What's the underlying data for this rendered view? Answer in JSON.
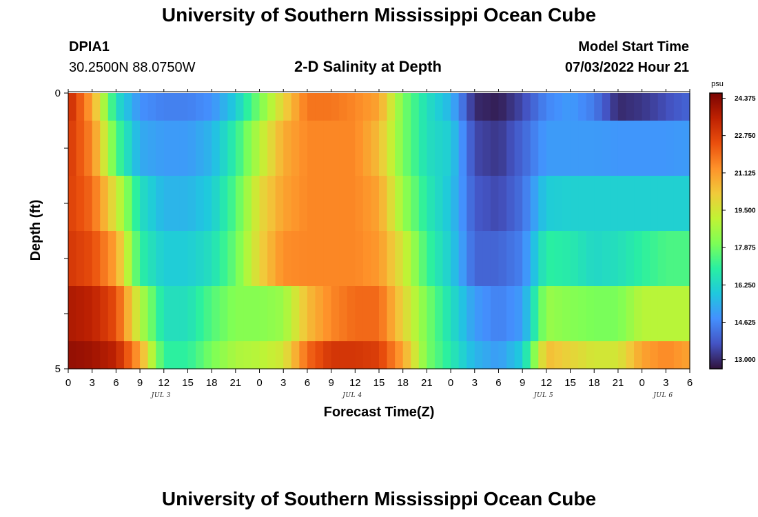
{
  "header": {
    "title": "University of Southern Mississippi Ocean Cube",
    "station_id": "DPIA1",
    "station_coords": "30.2500N  88.0750W",
    "chart_title": "2-D Salinity at Depth",
    "model_start_label": "Model Start Time",
    "model_start_value": "07/03/2022 Hour 21"
  },
  "footer": {
    "title": "University of Southern Mississippi Ocean Cube"
  },
  "chart_data": {
    "type": "heatmap",
    "title": "2-D Salinity at Depth",
    "xlabel": "Forecast Time(Z)",
    "ylabel": "Depth (ft)",
    "x_range_hours": [
      0,
      78
    ],
    "x_tick_hours": [
      0,
      3,
      6,
      9,
      12,
      15,
      18,
      21,
      24,
      27,
      30,
      33,
      36,
      39,
      42,
      45,
      48,
      51,
      54,
      57,
      60,
      63,
      66,
      69,
      72,
      75,
      78
    ],
    "x_tick_labels": [
      "0",
      "3",
      "6",
      "9",
      "12",
      "15",
      "18",
      "21",
      "0",
      "3",
      "6",
      "9",
      "12",
      "15",
      "18",
      "21",
      "0",
      "3",
      "6",
      "9",
      "12",
      "15",
      "18",
      "21",
      "0",
      "3",
      "6"
    ],
    "day_labels": [
      {
        "label": "JUL 3",
        "hour": 12
      },
      {
        "label": "JUL 4",
        "hour": 36
      },
      {
        "label": "JUL 5",
        "hour": 60
      },
      {
        "label": "JUL 6",
        "hour": 75
      }
    ],
    "y_range_ft": [
      0,
      5
    ],
    "y_tick_values": [
      0,
      1,
      2,
      3,
      4,
      5
    ],
    "y_tick_labels": [
      "0",
      "",
      "",
      "",
      "",
      "5"
    ],
    "depth_layers_ft": [
      0.25,
      1.0,
      2.0,
      3.0,
      4.0,
      4.75
    ],
    "colorbar": {
      "unit": "psu",
      "min": 12.6,
      "max": 24.6,
      "tick_values": [
        24.375,
        22.75,
        21.125,
        19.5,
        17.875,
        16.25,
        14.625,
        13.0
      ],
      "tick_labels": [
        "24.375",
        "22.750",
        "21.125",
        "19.500",
        "17.875",
        "16.250",
        "14.625",
        "13.000"
      ],
      "colors": [
        "#30123b",
        "#4454c4",
        "#4490fe",
        "#1fc8de",
        "#29efa2",
        "#7dff56",
        "#c1f334",
        "#f1ca3a",
        "#fe922a",
        "#ea4f0d",
        "#be2102",
        "#7a0403"
      ]
    },
    "salinity_keyframes": {
      "hours": [
        0,
        3,
        6,
        9,
        12,
        15,
        18,
        21,
        24,
        27,
        30,
        33,
        36,
        39,
        42,
        45,
        48,
        51,
        54,
        57,
        60,
        63,
        66,
        69,
        72,
        75,
        78
      ],
      "layers": [
        [
          23.4,
          21.0,
          16.5,
          14.8,
          14.5,
          14.5,
          14.8,
          16.0,
          18.0,
          20.0,
          21.8,
          21.8,
          21.5,
          21.0,
          18.0,
          16.5,
          15.5,
          13.0,
          12.8,
          13.5,
          14.6,
          15.0,
          14.4,
          13.0,
          13.2,
          13.6,
          14.0
        ],
        [
          23.0,
          21.5,
          17.5,
          15.3,
          15.0,
          15.0,
          15.5,
          17.0,
          19.0,
          20.8,
          21.5,
          21.5,
          21.5,
          20.5,
          18.0,
          16.5,
          16.0,
          13.5,
          13.2,
          14.0,
          15.0,
          15.0,
          15.0,
          14.9,
          14.9,
          14.9,
          15.0
        ],
        [
          22.8,
          22.0,
          19.5,
          16.5,
          15.5,
          15.5,
          16.0,
          17.5,
          19.8,
          21.0,
          21.5,
          21.5,
          21.5,
          21.0,
          18.5,
          16.8,
          15.8,
          13.8,
          13.5,
          14.2,
          16.0,
          16.1,
          16.1,
          16.1,
          16.1,
          16.1,
          16.1
        ],
        [
          23.0,
          22.5,
          21.0,
          17.0,
          16.0,
          16.0,
          16.5,
          17.8,
          20.0,
          21.4,
          21.5,
          21.5,
          21.5,
          21.2,
          19.5,
          17.2,
          16.0,
          14.0,
          14.0,
          14.5,
          17.0,
          16.8,
          16.3,
          16.5,
          17.0,
          17.4,
          17.4
        ],
        [
          23.8,
          23.5,
          22.5,
          19.0,
          16.5,
          16.5,
          17.5,
          18.2,
          18.2,
          18.5,
          20.5,
          21.5,
          22.0,
          22.0,
          20.0,
          18.0,
          16.5,
          15.0,
          14.5,
          15.0,
          18.5,
          18.2,
          18.0,
          18.0,
          19.0,
          19.0,
          19.0
        ],
        [
          24.2,
          24.0,
          23.5,
          21.0,
          17.0,
          17.0,
          18.0,
          18.8,
          19.0,
          19.5,
          22.0,
          23.0,
          23.0,
          22.8,
          21.0,
          18.0,
          16.8,
          15.5,
          15.0,
          16.0,
          20.5,
          20.0,
          19.5,
          19.5,
          21.0,
          21.5,
          21.0
        ]
      ]
    }
  }
}
